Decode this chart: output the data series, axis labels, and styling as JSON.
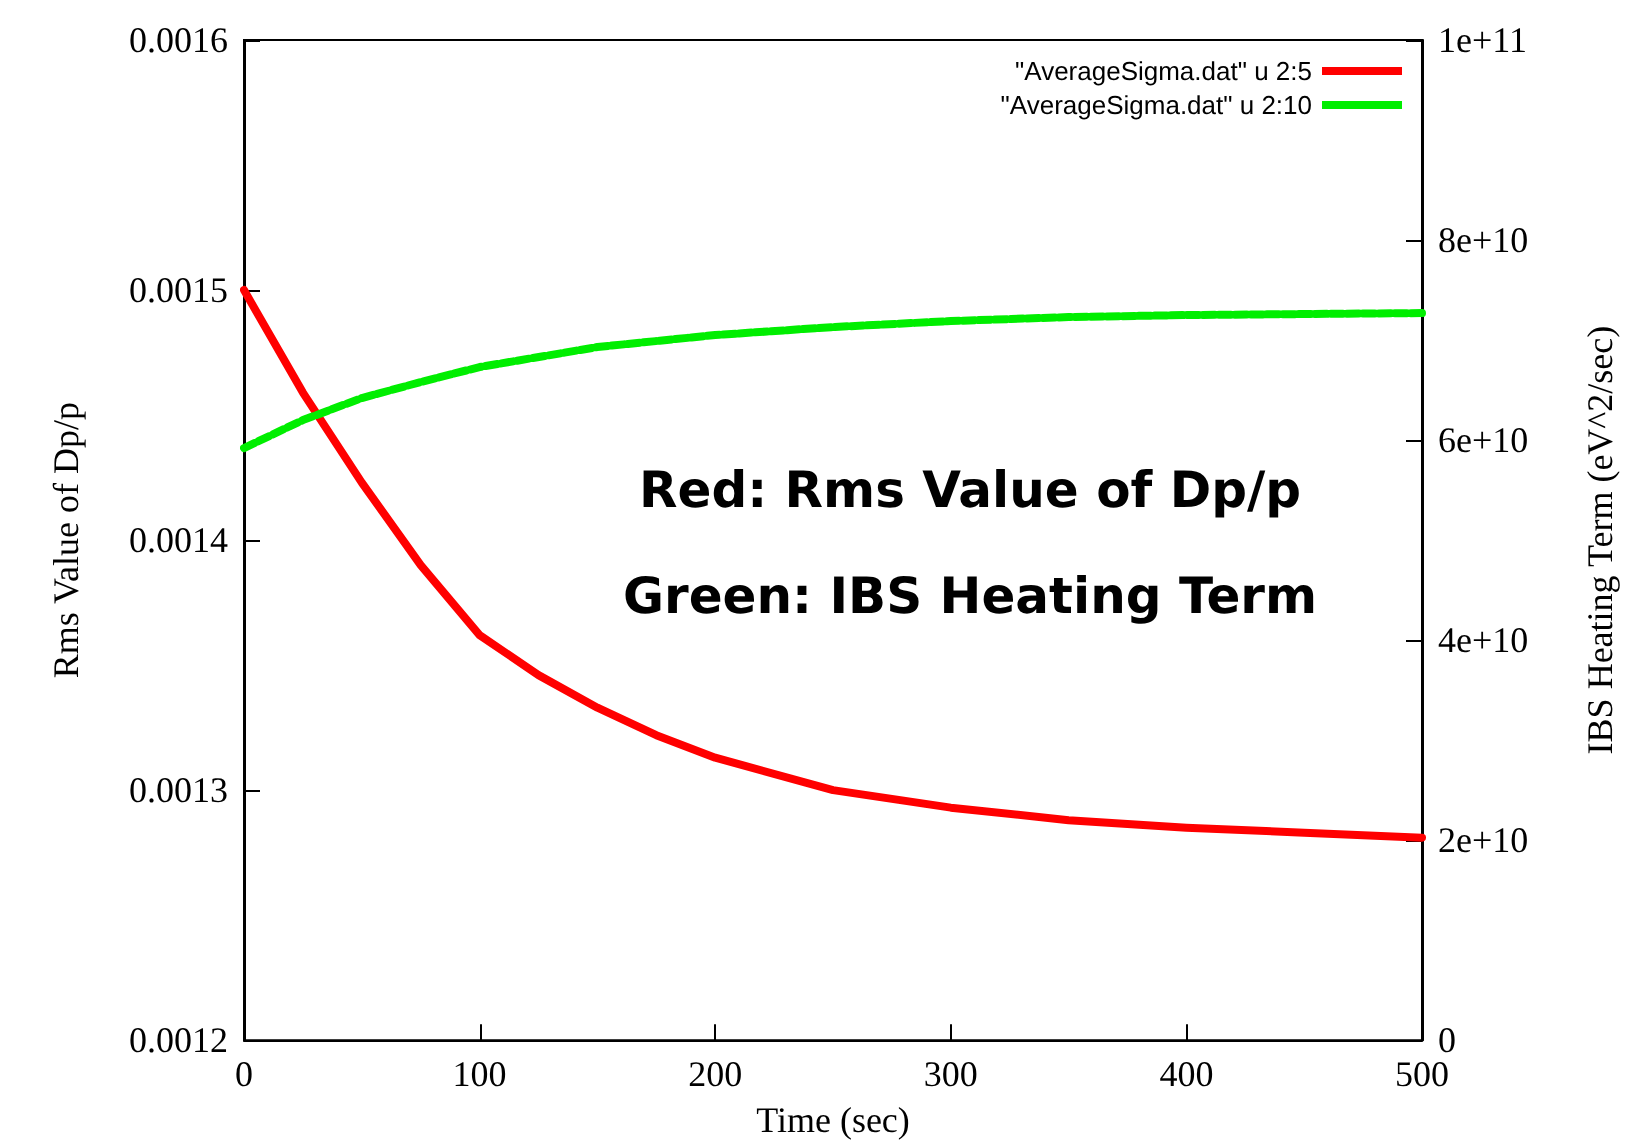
{
  "chart_data": {
    "type": "line",
    "xlabel": "Time (sec)",
    "ylabel": "Rms Value of Dp/p",
    "y2label": "IBS Heating Term (eV^2/sec)",
    "xlim": [
      0,
      500
    ],
    "xticks": [
      0,
      100,
      200,
      300,
      400,
      500
    ],
    "ylim": [
      0.0012,
      0.0016
    ],
    "yticks": [
      0.0012,
      0.0013,
      0.0014,
      0.0015,
      0.0016
    ],
    "y2lim": [
      0,
      100000000000
    ],
    "y2ticks": [
      {
        "value": 0,
        "label": "0"
      },
      {
        "value": 20000000000,
        "label": "2e+10"
      },
      {
        "value": 40000000000,
        "label": "4e+10"
      },
      {
        "value": 60000000000,
        "label": "6e+10"
      },
      {
        "value": 80000000000,
        "label": "8e+10"
      },
      {
        "value": 100000000000,
        "label": "1e+11"
      }
    ],
    "grid": false,
    "legend": "top right",
    "marker": "none",
    "annotations": [
      "Red: Rms Value of Dp/p",
      "Green: IBS Heating Term"
    ],
    "series": [
      {
        "name": "\"AverageSigma.dat\" u 2:5",
        "color": "#ff0000",
        "line_style": "solid",
        "x": [
          0,
          25,
          50,
          75,
          100,
          125,
          150,
          175,
          200,
          250,
          300,
          350,
          400,
          450,
          500
        ],
        "values": [
          0.0015,
          0.001459,
          0.001423,
          0.00139,
          0.001362,
          0.001346,
          0.001333,
          0.001322,
          0.001313,
          0.0013,
          0.001293,
          0.001288,
          0.001285,
          0.001283,
          0.001281
        ]
      },
      {
        "name": "\"AverageSigma.dat\" u 2:10",
        "color": "#00ee00",
        "line_style": "dashed",
        "axis": "y2",
        "x": [
          0,
          25,
          50,
          75,
          100,
          150,
          200,
          250,
          300,
          350,
          400,
          450,
          500
        ],
        "values": [
          59200000000,
          62000000000,
          64200000000,
          65800000000,
          67300000000,
          69300000000,
          70500000000,
          71300000000,
          71900000000,
          72300000000,
          72500000000,
          72600000000,
          72700000000
        ]
      }
    ]
  }
}
